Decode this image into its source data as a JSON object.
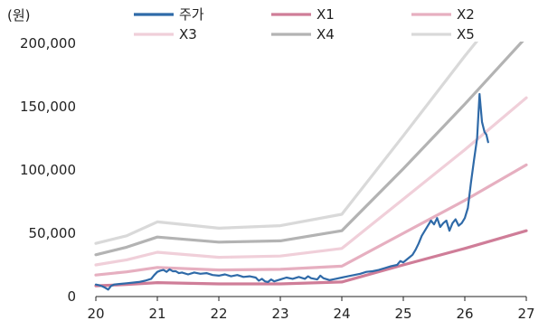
{
  "chart_data": {
    "type": "line",
    "unit_label": "(원)",
    "xlim": [
      20,
      27
    ],
    "ylim": [
      0,
      200000
    ],
    "x_ticks": [
      20,
      21,
      22,
      23,
      24,
      25,
      26,
      27
    ],
    "x_tick_labels": [
      "20",
      "21",
      "22",
      "23",
      "24",
      "25",
      "26",
      "27"
    ],
    "y_ticks": [
      0,
      50000,
      100000,
      150000,
      200000
    ],
    "y_tick_labels": [
      "0",
      "50,000",
      "100,000",
      "150,000",
      "200,000"
    ],
    "grid": false,
    "legend_position": "top",
    "series": [
      {
        "name": "주가",
        "color": "#2f6aa8",
        "width": 2.2,
        "points": [
          [
            20.0,
            9500
          ],
          [
            20.05,
            9000
          ],
          [
            20.1,
            8200
          ],
          [
            20.15,
            7000
          ],
          [
            20.2,
            5500
          ],
          [
            20.25,
            8500
          ],
          [
            20.3,
            9500
          ],
          [
            20.4,
            10000
          ],
          [
            20.5,
            10500
          ],
          [
            20.6,
            11000
          ],
          [
            20.7,
            11500
          ],
          [
            20.8,
            12500
          ],
          [
            20.9,
            14000
          ],
          [
            20.95,
            17000
          ],
          [
            21.0,
            19500
          ],
          [
            21.05,
            20500
          ],
          [
            21.1,
            21000
          ],
          [
            21.15,
            19500
          ],
          [
            21.2,
            21500
          ],
          [
            21.25,
            20000
          ],
          [
            21.3,
            20000
          ],
          [
            21.35,
            18500
          ],
          [
            21.4,
            19000
          ],
          [
            21.5,
            17500
          ],
          [
            21.6,
            19000
          ],
          [
            21.7,
            18000
          ],
          [
            21.8,
            18500
          ],
          [
            21.9,
            17000
          ],
          [
            22.0,
            16500
          ],
          [
            22.1,
            17500
          ],
          [
            22.2,
            16000
          ],
          [
            22.3,
            17000
          ],
          [
            22.4,
            15500
          ],
          [
            22.5,
            16000
          ],
          [
            22.6,
            15000
          ],
          [
            22.65,
            12500
          ],
          [
            22.7,
            14000
          ],
          [
            22.75,
            12000
          ],
          [
            22.8,
            11500
          ],
          [
            22.85,
            13500
          ],
          [
            22.9,
            12000
          ],
          [
            23.0,
            13500
          ],
          [
            23.1,
            15000
          ],
          [
            23.2,
            14000
          ],
          [
            23.3,
            15500
          ],
          [
            23.4,
            14000
          ],
          [
            23.45,
            16000
          ],
          [
            23.5,
            14500
          ],
          [
            23.6,
            13500
          ],
          [
            23.65,
            16500
          ],
          [
            23.7,
            14500
          ],
          [
            23.8,
            13000
          ],
          [
            23.9,
            14000
          ],
          [
            24.0,
            15000
          ],
          [
            24.1,
            16000
          ],
          [
            24.2,
            17000
          ],
          [
            24.3,
            18000
          ],
          [
            24.4,
            19500
          ],
          [
            24.5,
            20000
          ],
          [
            24.6,
            21000
          ],
          [
            24.7,
            22500
          ],
          [
            24.8,
            24000
          ],
          [
            24.9,
            25000
          ],
          [
            24.95,
            28000
          ],
          [
            25.0,
            27000
          ],
          [
            25.05,
            29000
          ],
          [
            25.1,
            31000
          ],
          [
            25.15,
            33000
          ],
          [
            25.2,
            37000
          ],
          [
            25.25,
            42000
          ],
          [
            25.3,
            48000
          ],
          [
            25.35,
            52000
          ],
          [
            25.4,
            56000
          ],
          [
            25.45,
            60000
          ],
          [
            25.5,
            57000
          ],
          [
            25.55,
            62000
          ],
          [
            25.6,
            55000
          ],
          [
            25.65,
            58000
          ],
          [
            25.7,
            60000
          ],
          [
            25.75,
            52000
          ],
          [
            25.8,
            58000
          ],
          [
            25.85,
            61000
          ],
          [
            25.9,
            56000
          ],
          [
            25.95,
            58000
          ],
          [
            26.0,
            62000
          ],
          [
            26.05,
            70000
          ],
          [
            26.1,
            90000
          ],
          [
            26.15,
            108000
          ],
          [
            26.2,
            125000
          ],
          [
            26.24,
            160000
          ],
          [
            26.28,
            138000
          ],
          [
            26.32,
            130000
          ],
          [
            26.35,
            128000
          ],
          [
            26.38,
            122000
          ]
        ]
      },
      {
        "name": "X1",
        "color": "#cf7d98",
        "width": 3.2,
        "points": [
          [
            20.0,
            8500
          ],
          [
            20.5,
            9500
          ],
          [
            21.0,
            11000
          ],
          [
            22.0,
            10000
          ],
          [
            23.0,
            10000
          ],
          [
            24.0,
            11500
          ],
          [
            25.0,
            25000
          ],
          [
            26.0,
            38000
          ],
          [
            27.0,
            52000
          ]
        ]
      },
      {
        "name": "X2",
        "color": "#e6afc0",
        "width": 3.2,
        "points": [
          [
            20.0,
            17000
          ],
          [
            20.5,
            19500
          ],
          [
            21.0,
            23000
          ],
          [
            22.0,
            21000
          ],
          [
            23.0,
            21500
          ],
          [
            24.0,
            24000
          ],
          [
            25.0,
            50000
          ],
          [
            26.0,
            76000
          ],
          [
            27.0,
            104000
          ]
        ]
      },
      {
        "name": "X3",
        "color": "#f0cfd9",
        "width": 3.2,
        "points": [
          [
            20.0,
            25000
          ],
          [
            20.5,
            29000
          ],
          [
            21.0,
            35000
          ],
          [
            22.0,
            31000
          ],
          [
            23.0,
            32000
          ],
          [
            24.0,
            38000
          ],
          [
            25.0,
            77000
          ],
          [
            26.0,
            116000
          ],
          [
            27.0,
            157000
          ]
        ]
      },
      {
        "name": "X4",
        "color": "#b3b3b3",
        "width": 3.2,
        "points": [
          [
            20.0,
            33000
          ],
          [
            20.5,
            39000
          ],
          [
            21.0,
            47000
          ],
          [
            22.0,
            43000
          ],
          [
            23.0,
            44000
          ],
          [
            24.0,
            52000
          ],
          [
            25.0,
            101000
          ],
          [
            26.0,
            152000
          ],
          [
            27.0,
            205000
          ]
        ]
      },
      {
        "name": "X5",
        "color": "#d9d9d9",
        "width": 3.2,
        "points": [
          [
            20.0,
            42000
          ],
          [
            20.5,
            48000
          ],
          [
            21.0,
            59000
          ],
          [
            22.0,
            54000
          ],
          [
            23.0,
            56000
          ],
          [
            24.0,
            65000
          ],
          [
            25.0,
            127000
          ],
          [
            26.0,
            190000
          ],
          [
            26.2,
            202000
          ]
        ]
      }
    ]
  }
}
